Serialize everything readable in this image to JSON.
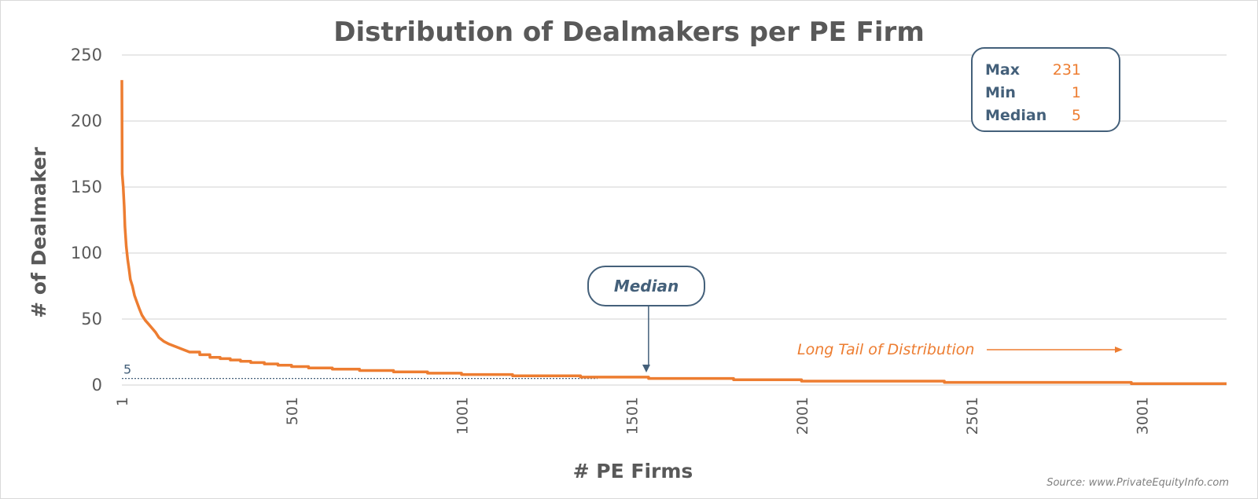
{
  "chart_data": {
    "type": "line",
    "title": "Distribution of Dealmakers per PE Firm",
    "xlabel": "# PE Firms",
    "ylabel": "# of Dealmaker",
    "xlim": [
      1,
      3250
    ],
    "ylim": [
      0,
      250
    ],
    "y_ticks": [
      "0",
      "50",
      "100",
      "150",
      "200",
      "250"
    ],
    "x_ticks": [
      "1",
      "501",
      "1001",
      "1501",
      "2001",
      "2501",
      "3001"
    ],
    "grid": "horizontal",
    "series": [
      {
        "color": "#ed7d31",
        "points": [
          [
            1,
            231
          ],
          [
            2,
            160
          ],
          [
            5,
            150
          ],
          [
            8,
            135
          ],
          [
            10,
            120
          ],
          [
            14,
            105
          ],
          [
            18,
            95
          ],
          [
            22,
            88
          ],
          [
            26,
            80
          ],
          [
            32,
            75
          ],
          [
            38,
            68
          ],
          [
            45,
            63
          ],
          [
            52,
            58
          ],
          [
            60,
            53
          ],
          [
            70,
            49
          ],
          [
            80,
            46
          ],
          [
            90,
            43
          ],
          [
            100,
            40
          ],
          [
            110,
            36
          ],
          [
            125,
            33
          ],
          [
            140,
            31
          ],
          [
            160,
            29
          ],
          [
            180,
            27
          ],
          [
            200,
            25
          ],
          [
            230,
            23
          ],
          [
            260,
            21
          ],
          [
            290,
            20
          ],
          [
            320,
            19
          ],
          [
            350,
            18
          ],
          [
            380,
            17
          ],
          [
            420,
            16
          ],
          [
            460,
            15
          ],
          [
            500,
            14
          ],
          [
            550,
            13
          ],
          [
            620,
            12
          ],
          [
            700,
            11
          ],
          [
            800,
            10
          ],
          [
            900,
            9
          ],
          [
            1000,
            8
          ],
          [
            1150,
            7
          ],
          [
            1350,
            6
          ],
          [
            1550,
            5
          ],
          [
            1800,
            4
          ],
          [
            2000,
            3
          ],
          [
            2400,
            3
          ],
          [
            2420,
            2
          ],
          [
            2950,
            2
          ],
          [
            2970,
            1
          ],
          [
            3250,
            1
          ]
        ]
      }
    ],
    "stats": [
      {
        "label": "Max",
        "value": "231"
      },
      {
        "label": "Min",
        "value": "1"
      },
      {
        "label": "Median",
        "value": "5"
      }
    ],
    "median_value": 5,
    "median_tag": "5",
    "median_callout": "Median",
    "median_callout_x": 1550,
    "tail_label": "Long Tail of Distribution",
    "source": "Source: www.PrivateEquityInfo.com"
  },
  "colors": {
    "series": "#ed7d31",
    "accent": "#44607a",
    "text": "#595959",
    "grid": "#d9d9d9"
  }
}
